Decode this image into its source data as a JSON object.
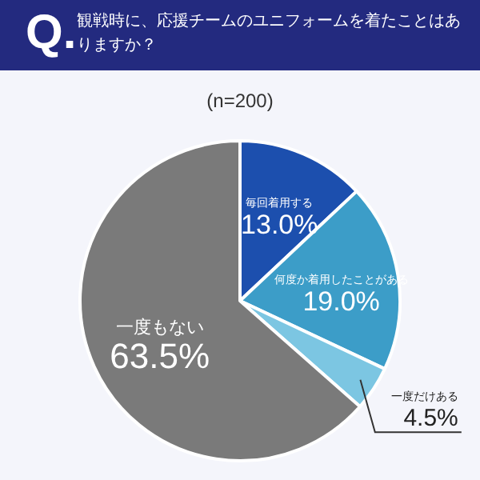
{
  "chart_data": {
    "type": "pie",
    "title": "観戦時に、応援チームのユニフォームを着たことはありますか？",
    "subtitle": "(n=200)",
    "annotations": [
      "Q."
    ],
    "categories": [
      "毎回着用する",
      "何度か着用したことがある",
      "一度だけある",
      "一度もない"
    ],
    "values": [
      13.0,
      19.0,
      4.5,
      63.5
    ],
    "value_labels": [
      "13.0%",
      "19.0%",
      "4.5%",
      "63.5%"
    ],
    "colors": [
      "#1c4fae",
      "#3c9dc8",
      "#7cc6e2",
      "#7a7a7a"
    ],
    "legend": false
  }
}
